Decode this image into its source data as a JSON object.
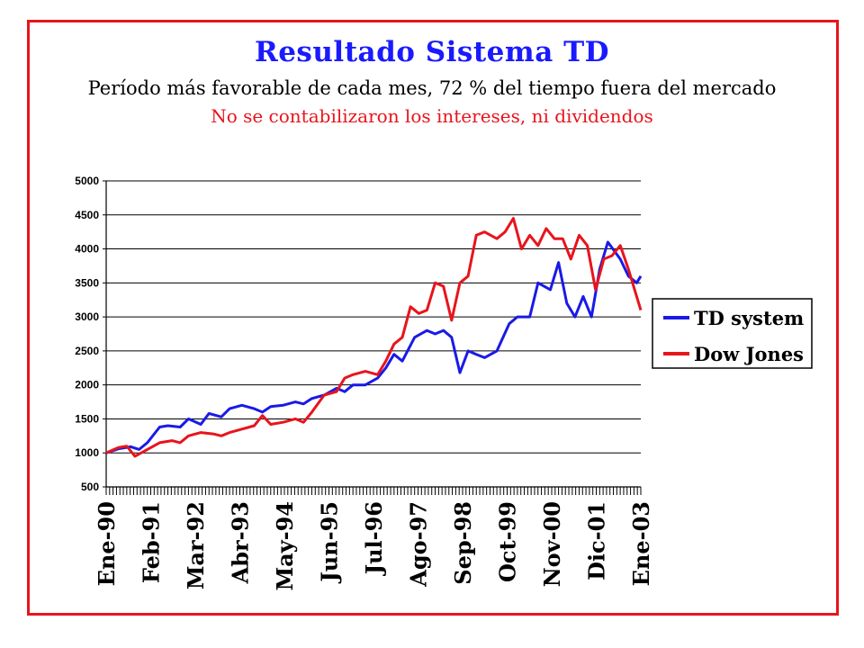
{
  "chart_data": {
    "type": "line",
    "title": "Resultado Sistema TD",
    "subtitle": "Período más favorable de cada mes, 72 % del tiempo fuera del mercado",
    "note": "No se contabilizaron los intereses, ni dividendos",
    "xlabel": "",
    "ylabel": "",
    "ylim": [
      500,
      5000
    ],
    "yticks": [
      500,
      1000,
      1500,
      2000,
      2500,
      3000,
      3500,
      4000,
      4500,
      5000
    ],
    "grid": true,
    "legend_position": "right",
    "x_range": [
      1990.0,
      2003.0
    ],
    "x_tick_labels": [
      {
        "label": "Ene-90",
        "x": 1990.0
      },
      {
        "label": "Feb-91",
        "x": 1991.08
      },
      {
        "label": "Mar-92",
        "x": 1992.17
      },
      {
        "label": "Abr-93",
        "x": 1993.25
      },
      {
        "label": "May-94",
        "x": 1994.33
      },
      {
        "label": "Jun-95",
        "x": 1995.42
      },
      {
        "label": "Jul-96",
        "x": 1996.5
      },
      {
        "label": "Ago-97",
        "x": 1997.58
      },
      {
        "label": "Sep-98",
        "x": 1998.67
      },
      {
        "label": "Oct-99",
        "x": 1999.75
      },
      {
        "label": "Nov-00",
        "x": 2000.83
      },
      {
        "label": "Dic-01",
        "x": 2001.92
      },
      {
        "label": "Ene-03",
        "x": 2003.0
      }
    ],
    "series": [
      {
        "name": "TD system",
        "color": "#1a1ae6",
        "x": [
          1990.0,
          1990.3,
          1990.6,
          1990.8,
          1991.0,
          1991.3,
          1991.5,
          1991.8,
          1992.0,
          1992.3,
          1992.5,
          1992.8,
          1993.0,
          1993.3,
          1993.6,
          1993.8,
          1994.0,
          1994.3,
          1994.6,
          1994.8,
          1995.0,
          1995.3,
          1995.6,
          1995.8,
          1996.0,
          1996.3,
          1996.6,
          1996.8,
          1997.0,
          1997.2,
          1997.5,
          1997.8,
          1998.0,
          1998.2,
          1998.4,
          1998.6,
          1998.8,
          1999.0,
          1999.2,
          1999.5,
          1999.8,
          2000.0,
          2000.3,
          2000.5,
          2000.8,
          2001.0,
          2001.2,
          2001.4,
          2001.6,
          2001.8,
          2002.0,
          2002.2,
          2002.5,
          2002.7,
          2002.9,
          2003.0
        ],
        "values": [
          1000,
          1060,
          1090,
          1050,
          1150,
          1380,
          1400,
          1380,
          1500,
          1420,
          1580,
          1530,
          1650,
          1700,
          1650,
          1600,
          1680,
          1700,
          1750,
          1720,
          1800,
          1850,
          1950,
          1900,
          2000,
          2000,
          2100,
          2250,
          2450,
          2350,
          2700,
          2800,
          2750,
          2800,
          2700,
          2180,
          2500,
          2450,
          2400,
          2500,
          2900,
          3000,
          3000,
          3500,
          3400,
          3800,
          3200,
          3000,
          3300,
          3000,
          3700,
          4100,
          3850,
          3600,
          3500,
          3600
        ]
      },
      {
        "name": "Dow Jones",
        "color": "#e8141c",
        "x": [
          1990.0,
          1990.3,
          1990.5,
          1990.7,
          1991.0,
          1991.3,
          1991.6,
          1991.8,
          1992.0,
          1992.3,
          1992.6,
          1992.8,
          1993.0,
          1993.3,
          1993.6,
          1993.8,
          1994.0,
          1994.3,
          1994.6,
          1994.8,
          1995.0,
          1995.3,
          1995.6,
          1995.8,
          1996.0,
          1996.3,
          1996.6,
          1996.8,
          1997.0,
          1997.2,
          1997.4,
          1997.6,
          1997.8,
          1998.0,
          1998.2,
          1998.4,
          1998.6,
          1998.8,
          1999.0,
          1999.2,
          1999.5,
          1999.7,
          1999.9,
          2000.1,
          2000.3,
          2000.5,
          2000.7,
          2000.9,
          2001.1,
          2001.3,
          2001.5,
          2001.7,
          2001.9,
          2002.1,
          2002.3,
          2002.5,
          2002.7,
          2002.9,
          2003.0
        ],
        "values": [
          1000,
          1080,
          1100,
          950,
          1050,
          1150,
          1180,
          1150,
          1250,
          1300,
          1280,
          1250,
          1300,
          1350,
          1400,
          1550,
          1420,
          1450,
          1500,
          1450,
          1600,
          1850,
          1900,
          2100,
          2150,
          2200,
          2150,
          2350,
          2600,
          2700,
          3150,
          3050,
          3100,
          3500,
          3450,
          2950,
          3500,
          3600,
          4200,
          4250,
          4150,
          4250,
          4450,
          4000,
          4200,
          4050,
          4300,
          4150,
          4150,
          3850,
          4200,
          4050,
          3400,
          3850,
          3900,
          4050,
          3700,
          3300,
          3100
        ]
      }
    ]
  }
}
